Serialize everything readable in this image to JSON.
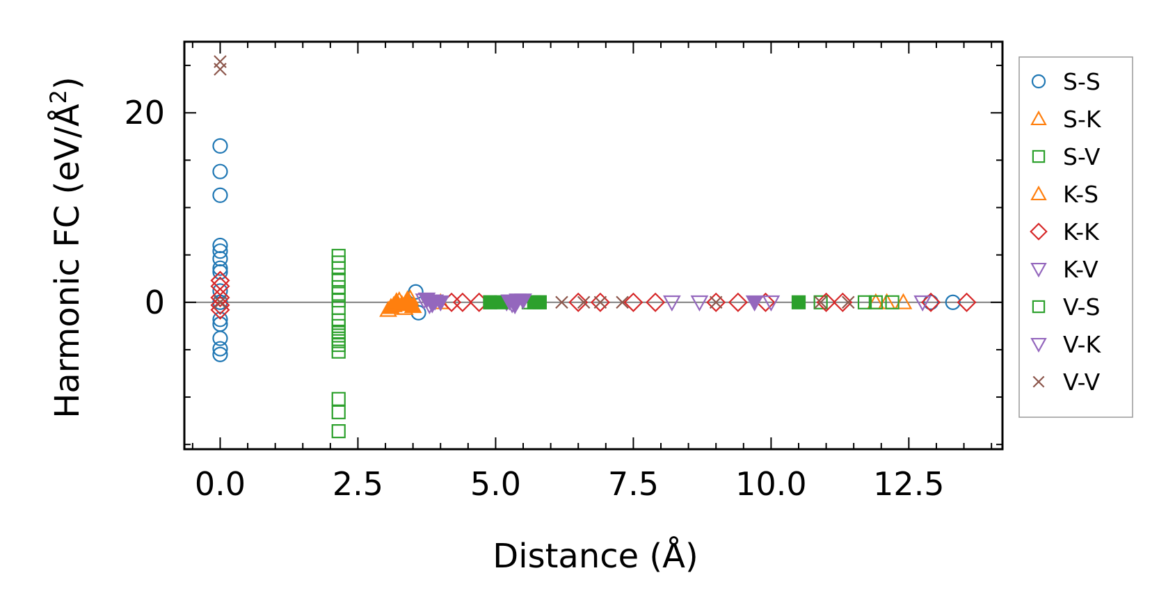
{
  "chart_data": {
    "type": "scatter",
    "xlabel": "Distance (Å)",
    "ylabel_main": "Harmonic FC (eV/Å",
    "ylabel_sup": "2",
    "ylabel_close": ")",
    "xlim": [
      -0.65,
      14.2
    ],
    "ylim": [
      -15.5,
      27.5
    ],
    "x_ticks": [
      0.0,
      2.5,
      5.0,
      7.5,
      10.0,
      12.5
    ],
    "x_tick_labels": [
      "0.0",
      "2.5",
      "5.0",
      "7.5",
      "10.0",
      "12.5"
    ],
    "y_ticks": [
      0,
      20
    ],
    "y_tick_labels": [
      "0",
      "20"
    ],
    "x_minor_step": 0.5,
    "y_minor_step": 5,
    "zero_line": true,
    "legend_position": "outside-right",
    "series": [
      {
        "name": "S-S",
        "marker": "circle",
        "color": "#1f77b4",
        "filled": false,
        "x": [
          0,
          0,
          0,
          0,
          0,
          0,
          0,
          0,
          0,
          0,
          0,
          0,
          0,
          0,
          0,
          3.55,
          3.6,
          12.9,
          13.3
        ],
        "y": [
          16.5,
          13.8,
          11.3,
          6.0,
          5.4,
          4.6,
          3.6,
          3.2,
          1.2,
          -1.8,
          -2.3,
          -3.8,
          -4.9,
          -5.5,
          0,
          1.1,
          -1.1,
          0,
          0
        ]
      },
      {
        "name": "S-K",
        "marker": "triangle-up",
        "color": "#ff7f0e",
        "filled": false,
        "x": [
          3.05,
          3.15,
          3.25,
          3.35,
          3.45,
          4.0,
          11.9,
          12.1,
          12.4
        ],
        "y": [
          -0.8,
          -0.3,
          0.2,
          -0.6,
          0.4,
          0,
          0,
          0,
          0
        ]
      },
      {
        "name": "S-V",
        "marker": "square",
        "color": "#2ca02c",
        "filled": false,
        "x": [
          2.15,
          2.15,
          2.15,
          2.15,
          2.15,
          2.15,
          2.15,
          2.15,
          2.15,
          2.15,
          2.15,
          2.15,
          2.15,
          2.15,
          2.15,
          2.15,
          2.15,
          2.15,
          4.9,
          5.6,
          5.8,
          10.9,
          11.7,
          11.9,
          12.2
        ],
        "y": [
          4.9,
          4.2,
          3.6,
          2.4,
          1.6,
          0.9,
          0.2,
          -0.6,
          -1.9,
          -2.5,
          -3.1,
          -3.5,
          -4.1,
          -4.5,
          -5.2,
          -10.2,
          -11.6,
          -13.6,
          0,
          0,
          0,
          0,
          0,
          0,
          0
        ]
      },
      {
        "name": "K-S",
        "marker": "triangle-up",
        "color": "#ff7f0e",
        "filled": true,
        "x": [
          3.1,
          3.2,
          3.3,
          3.4,
          3.5
        ],
        "y": [
          -0.5,
          0.1,
          -0.2,
          0.3,
          -0.4
        ]
      },
      {
        "name": "K-K",
        "marker": "diamond",
        "color": "#d62728",
        "filled": false,
        "x": [
          0,
          0,
          0,
          0,
          0,
          4.2,
          4.4,
          4.7,
          6.5,
          6.9,
          7.5,
          7.9,
          9.0,
          9.4,
          9.9,
          11.0,
          11.3,
          12.9,
          13.55
        ],
        "y": [
          2.3,
          1.7,
          0.5,
          -0.3,
          -0.8,
          0,
          0,
          0,
          0,
          0,
          0,
          0,
          0,
          0,
          0,
          0,
          0,
          0,
          0
        ]
      },
      {
        "name": "K-V",
        "marker": "triangle-down",
        "color": "#9467bd",
        "filled": false,
        "x": [
          3.7,
          3.8,
          3.9,
          5.2,
          5.3,
          5.4,
          8.2,
          8.7,
          10.0,
          12.75
        ],
        "y": [
          0.2,
          -0.3,
          0.1,
          0,
          -0.2,
          0.2,
          0,
          0,
          0,
          0
        ]
      },
      {
        "name": "V-S",
        "marker": "square",
        "color": "#2ca02c",
        "filled": true,
        "x": [
          4.9,
          5.1,
          5.7,
          5.8,
          10.5
        ],
        "y": [
          0,
          0,
          0,
          0,
          0
        ]
      },
      {
        "name": "V-K",
        "marker": "triangle-down",
        "color": "#9467bd",
        "filled": true,
        "x": [
          3.75,
          3.85,
          4.0,
          5.25,
          5.35,
          5.5,
          9.7
        ],
        "y": [
          0.3,
          -0.2,
          0,
          0.1,
          -0.3,
          0.2,
          0
        ]
      },
      {
        "name": "V-V",
        "marker": "x",
        "color": "#8c564b",
        "filled": false,
        "x": [
          0,
          0,
          0,
          6.2,
          6.6,
          6.9,
          7.3,
          9.0,
          10.9,
          11.4
        ],
        "y": [
          25.4,
          24.6,
          0,
          0,
          0,
          0,
          0,
          0,
          0,
          0
        ]
      }
    ]
  }
}
